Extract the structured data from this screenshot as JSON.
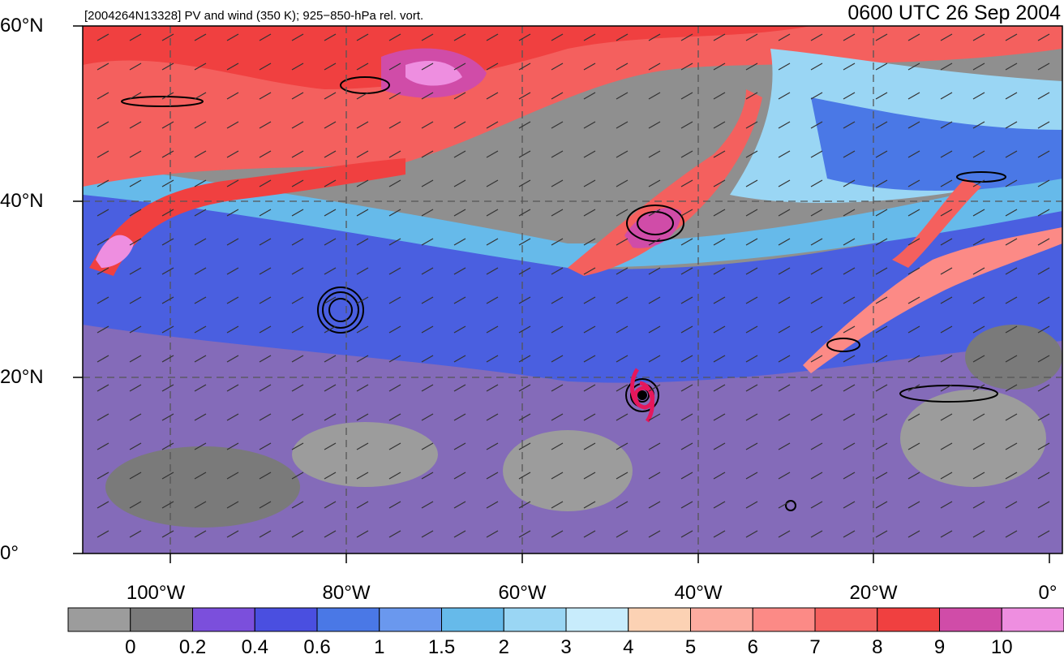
{
  "header": {
    "left_title": "[2004264N13328] PV and wind (350 K); 925−850-hPa rel. vort.",
    "right_title": "0600 UTC 26 Sep 2004"
  },
  "map": {
    "lat_range": [
      0,
      60
    ],
    "lon_range": [
      -110,
      0
    ],
    "lat_labels": [
      "60°N",
      "40°N",
      "20°N",
      "0°"
    ],
    "lon_labels": [
      "100°W",
      "80°W",
      "60°W",
      "40°W",
      "20°W",
      "0°"
    ],
    "grid": "dashed",
    "storm_symbol": "tropical-storm-icon"
  },
  "colorbar": {
    "colors": [
      "#9c9c9c",
      "#7a7a7a",
      "#7b4fdc",
      "#4a4fe0",
      "#4a78e6",
      "#6a98ee",
      "#66baea",
      "#9ad6f4",
      "#c8ecfc",
      "#fcd2b4",
      "#fcaca0",
      "#fc8a86",
      "#f4605e",
      "#f04040",
      "#d04ca8",
      "#ee8ee0"
    ],
    "labels": [
      "0",
      "0.2",
      "0.4",
      "0.6",
      "1",
      "1.5",
      "2",
      "3",
      "4",
      "5",
      "6",
      "7",
      "8",
      "9",
      "10"
    ]
  }
}
